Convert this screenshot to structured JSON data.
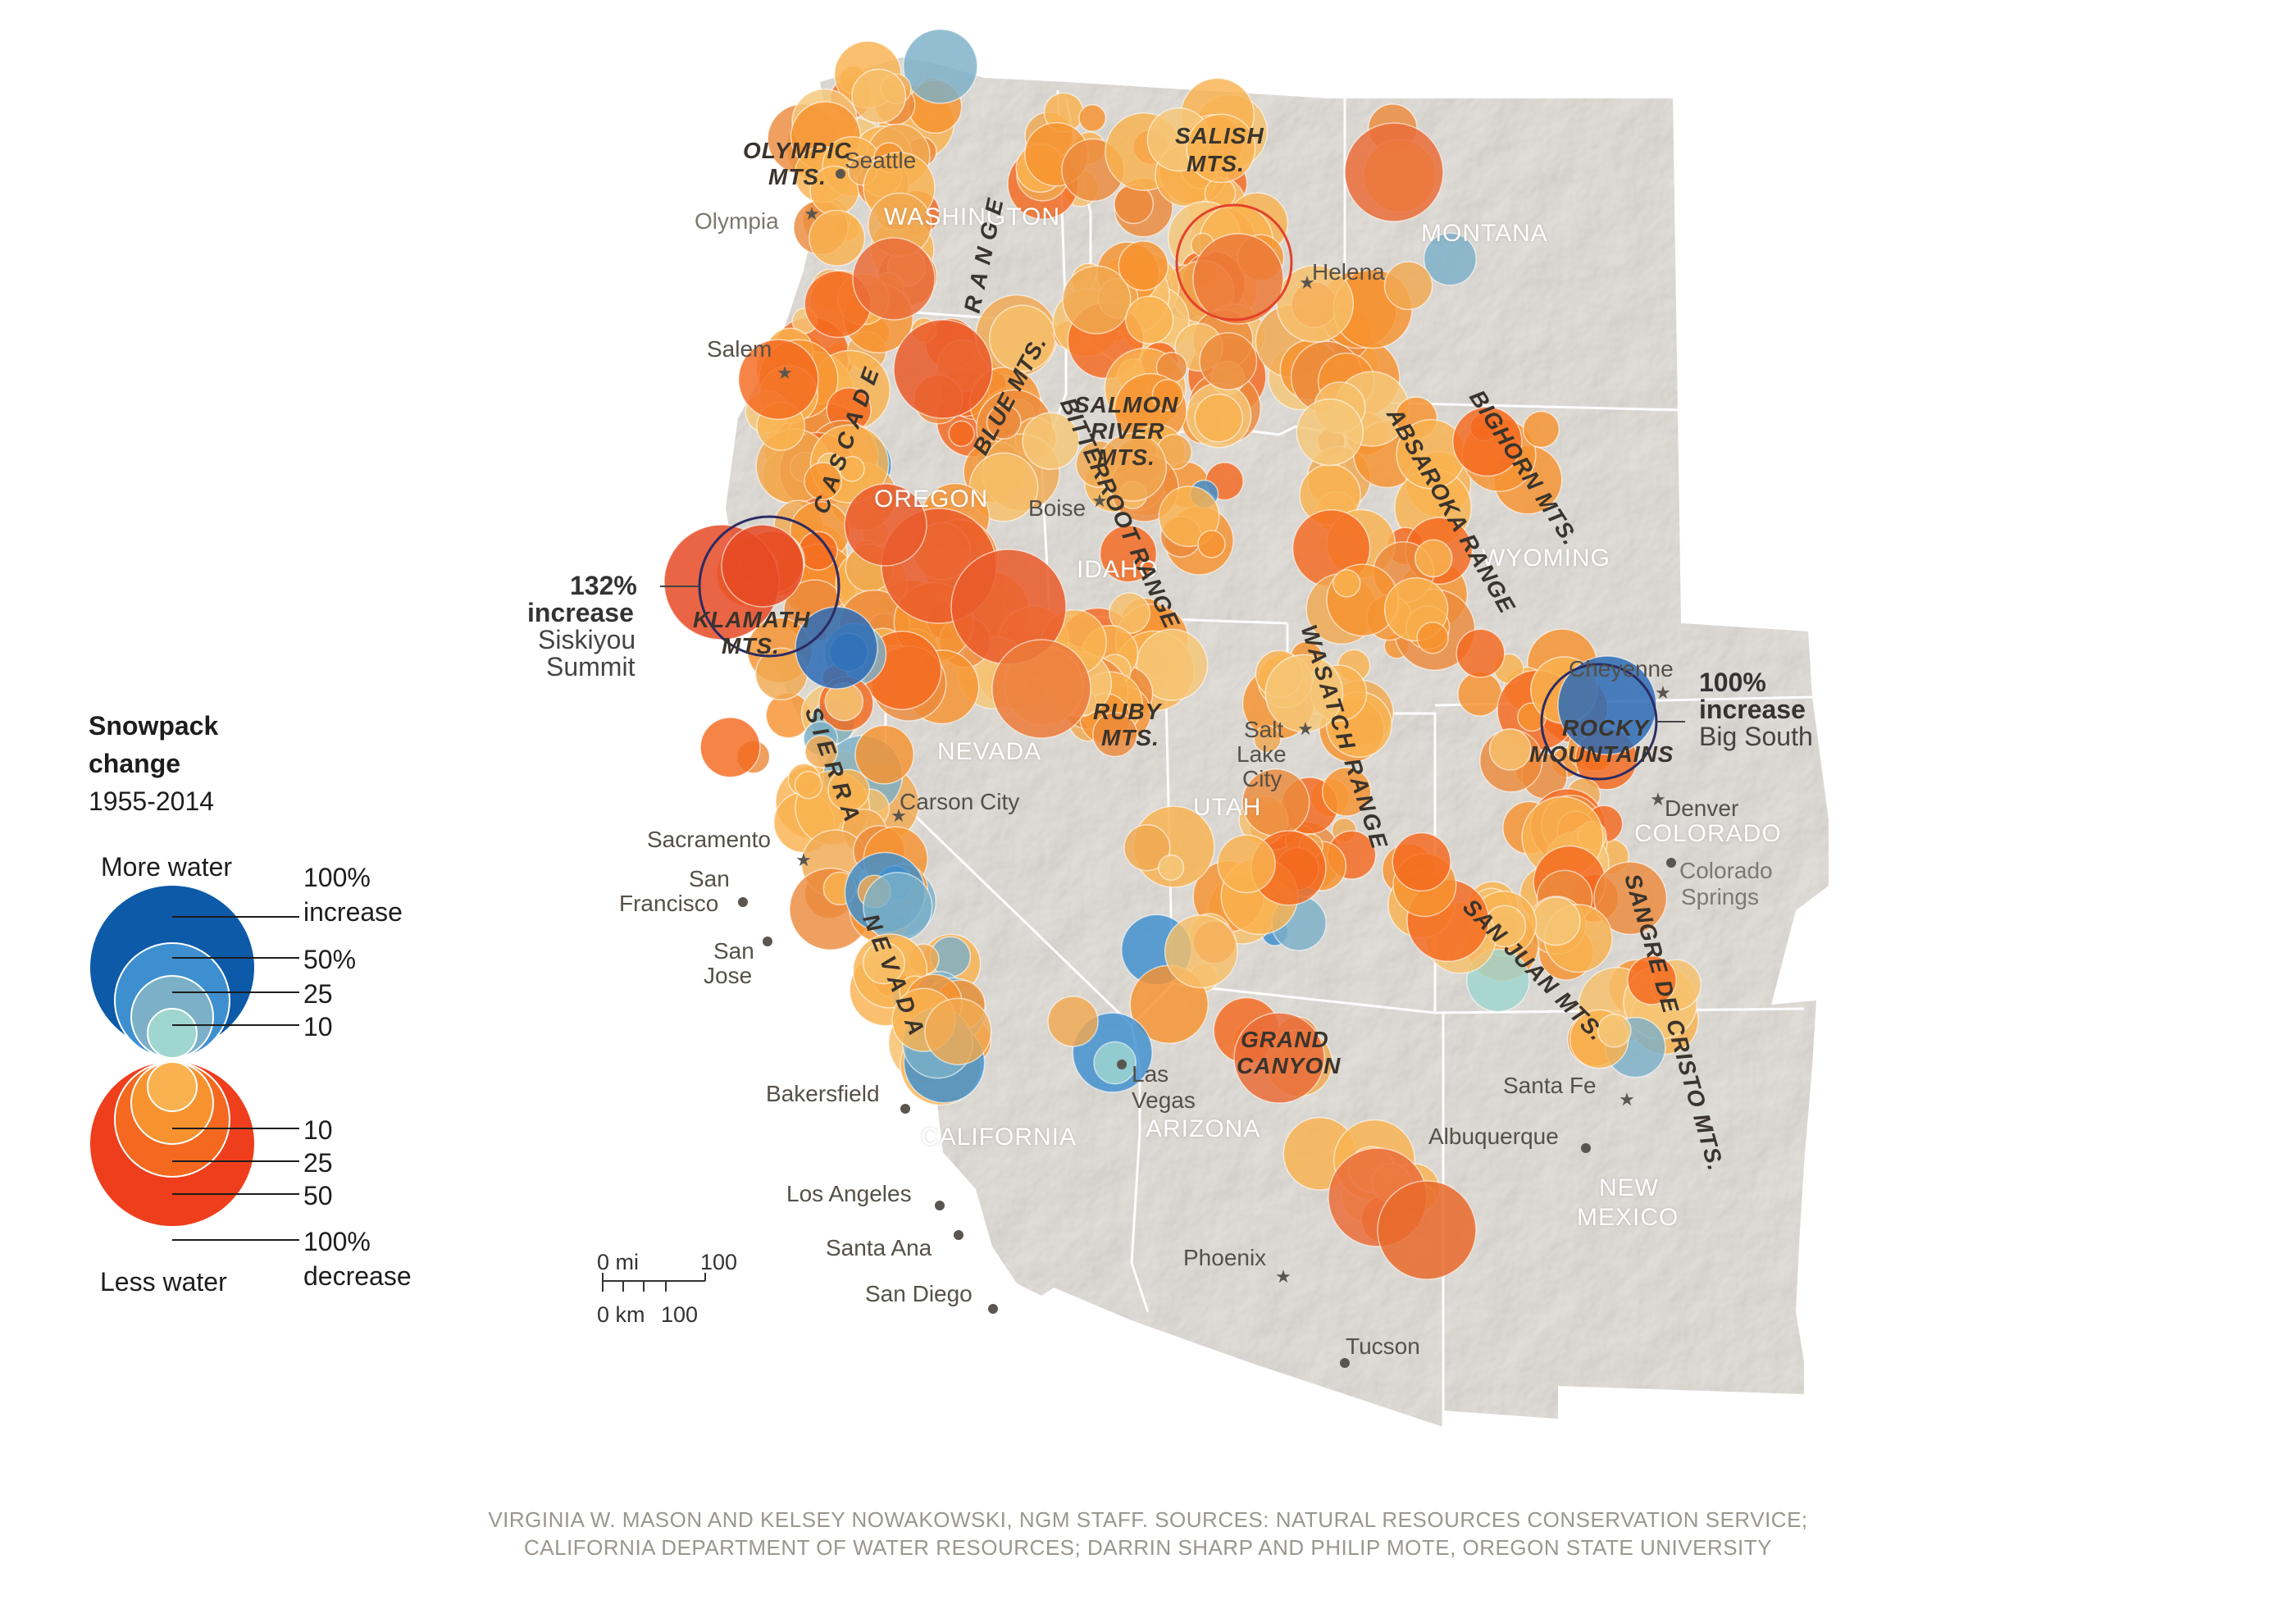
{
  "legend": {
    "title_line1": "Snowpack",
    "title_line2": "change",
    "years": "1955-2014",
    "more_water": "More water",
    "less_water": "Less water",
    "inc_100_a": "100%",
    "inc_100_b": "increase",
    "inc_50": "50%",
    "inc_25": "25",
    "inc_10": "10",
    "dec_10": "10",
    "dec_25": "25",
    "dec_50": "50",
    "dec_100_a": "100%",
    "dec_100_b": "decrease",
    "increase_colors": [
      "#0d5aa8",
      "#3d8fd0",
      "#7bb0c8",
      "#9fd6cf"
    ],
    "decrease_colors": [
      "#ef3e1c",
      "#f4691f",
      "#f7932f",
      "#f9b24f"
    ]
  },
  "states": {
    "washington": "WASHINGTON",
    "oregon": "OREGON",
    "idaho": "IDAHO",
    "montana": "MONTANA",
    "wyoming": "WYOMING",
    "nevada": "NEVADA",
    "utah": "UTAH",
    "colorado": "COLORADO",
    "california": "CALIFORNIA",
    "arizona": "ARIZONA",
    "new_mexico_1": "NEW",
    "new_mexico_2": "MEXICO"
  },
  "cities": {
    "seattle": "Seattle",
    "olympia": "Olympia",
    "salem": "Salem",
    "boise": "Boise",
    "helena": "Helena",
    "cheyenne": "Cheyenne",
    "salt_lake_1": "Salt",
    "salt_lake_2": "Lake",
    "salt_lake_3": "City",
    "carson_city": "Carson City",
    "sacramento": "Sacramento",
    "san_francisco_1": "San",
    "san_francisco_2": "Francisco",
    "san_jose_1": "San",
    "san_jose_2": "Jose",
    "denver": "Denver",
    "colorado_springs_1": "Colorado",
    "colorado_springs_2": "Springs",
    "las_vegas_1": "Las",
    "las_vegas_2": "Vegas",
    "bakersfield": "Bakersfield",
    "los_angeles": "Los Angeles",
    "santa_ana": "Santa Ana",
    "san_diego": "San Diego",
    "phoenix": "Phoenix",
    "tucson": "Tucson",
    "santa_fe": "Santa Fe",
    "albuquerque": "Albuquerque"
  },
  "ranges": {
    "olympic_1": "OLYMPIC",
    "olympic_2": "MTS.",
    "salish_1": "SALISH",
    "salish_2": "MTS.",
    "bitterroot": "BITTERROOT RANGE",
    "blue": "BLUE MTS.",
    "salmon_1": "SALMON",
    "salmon_2": "RIVER",
    "salmon_3": "MTS.",
    "bighorn": "BIGHORN MTS.",
    "absaroka": "ABSAROKA RANGE",
    "cascade_1": "CASCADE",
    "cascade_2": "RANGE",
    "klamath_1": "KLAMATH",
    "klamath_2": "MTS.",
    "ruby_1": "RUBY",
    "ruby_2": "MTS.",
    "wasatch": "WASATCH RANGE",
    "rocky_1": "ROCKY",
    "rocky_2": "MOUNTAINS",
    "sierra_1": "SIERRA",
    "sierra_2": "NEVADA",
    "san_juan": "SAN JUAN MTS.",
    "sangre": "SANGRE DE CRISTO MTS.",
    "grand_1": "GRAND",
    "grand_2": "CANYON"
  },
  "callouts": {
    "siskiyou_num_1": "132%",
    "siskiyou_num_2": "increase",
    "siskiyou_place_1": "Siskiyou",
    "siskiyou_place_2": "Summit",
    "bigsouth_num_1": "100%",
    "bigsouth_num_2": "increase",
    "bigsouth_place": "Big South"
  },
  "scale_bar": {
    "mi_zero": "0 mi",
    "mi_val": "100",
    "km_zero": "0 km",
    "km_val": "100"
  },
  "credit": {
    "line1": "VIRGINIA W. MASON AND KELSEY NOWAKOWSKI, NGM STAFF. SOURCES: NATURAL RESOURCES CONSERVATION SERVICE;",
    "line2": "CALIFORNIA DEPARTMENT OF WATER RESOURCES; DARRIN SHARP AND PHILIP MOTE, OREGON STATE UNIVERSITY"
  }
}
